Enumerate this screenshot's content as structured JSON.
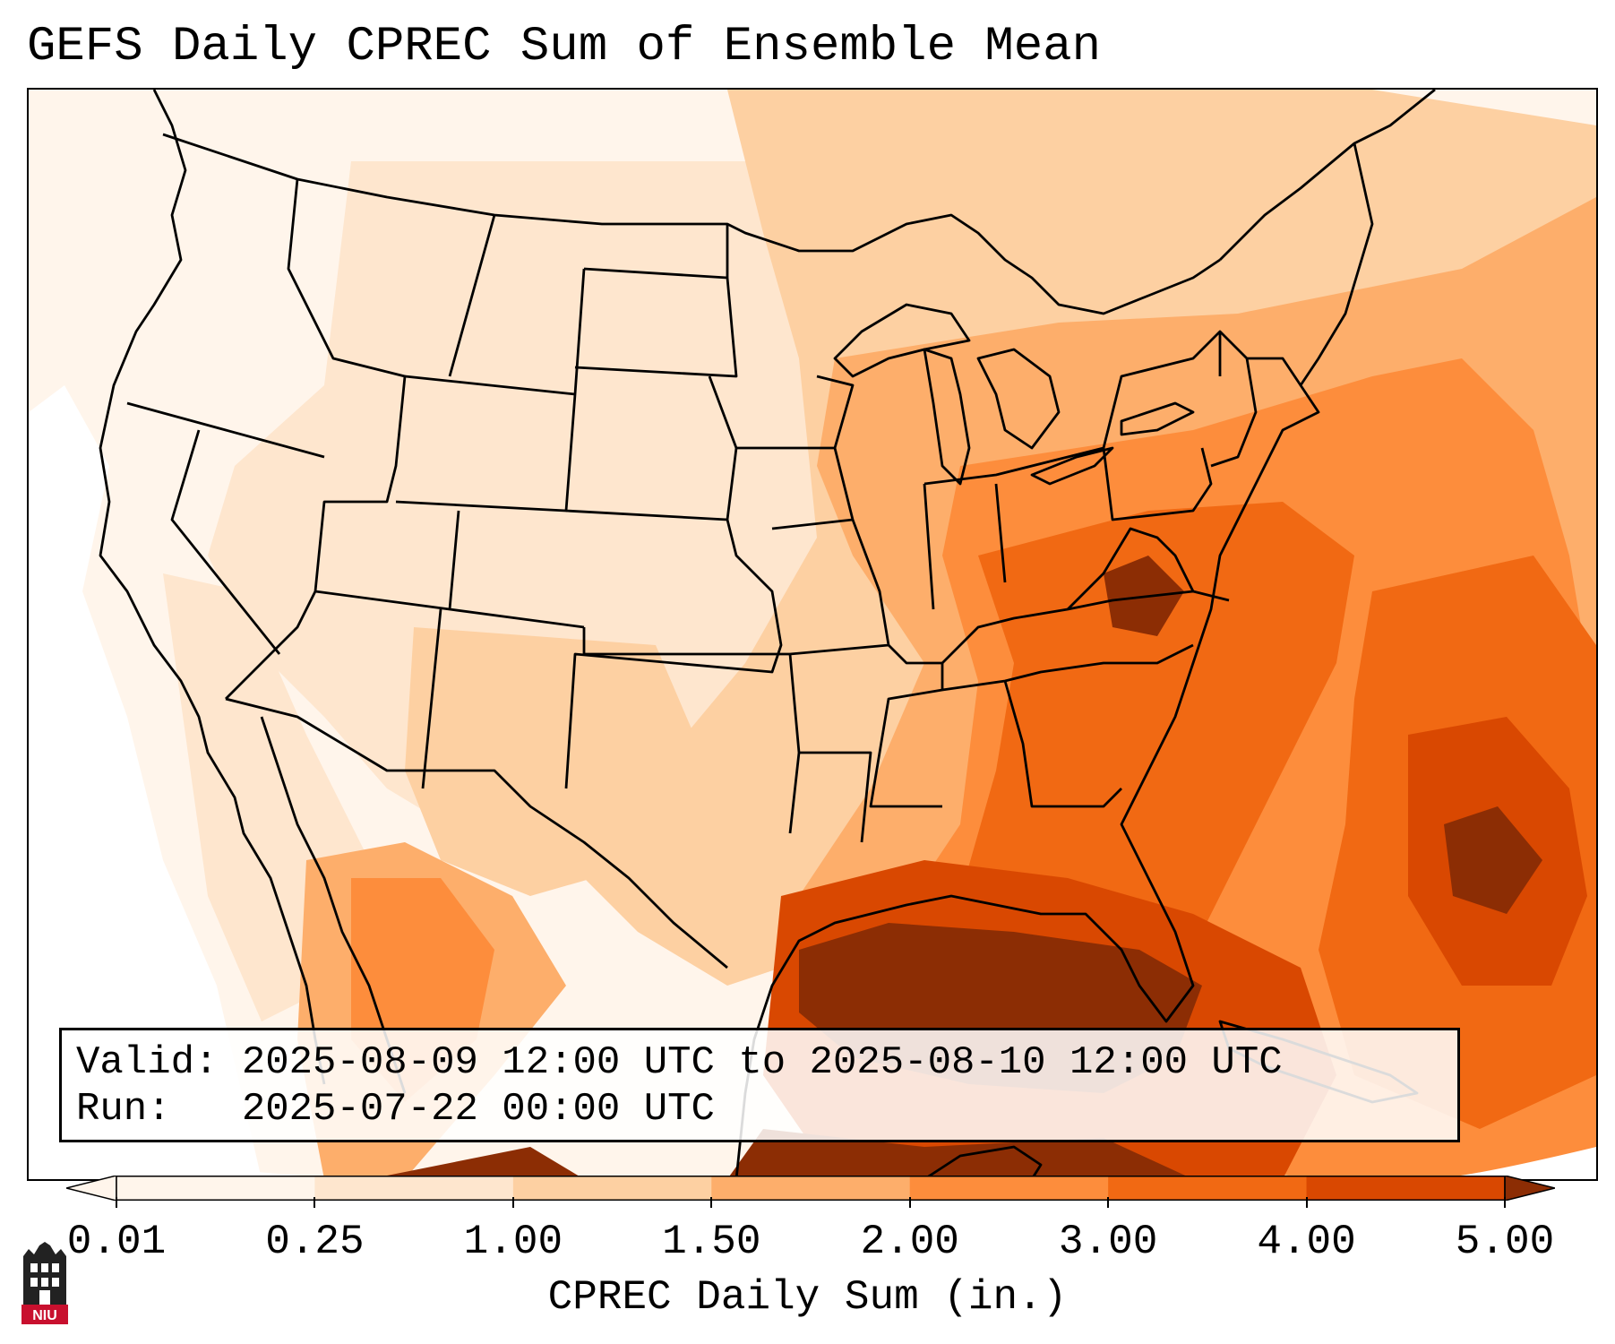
{
  "title": "GEFS Daily CPREC Sum of Ensemble Mean",
  "info": {
    "valid_label": "Valid:",
    "valid_value": "2025-08-09 12:00 UTC to 2025-08-10 12:00 UTC",
    "run_label": "Run:",
    "run_value": "2025-07-22 00:00 UTC"
  },
  "colorbar": {
    "label": "CPREC Daily Sum (in.)",
    "ticks": [
      "0.01",
      "0.25",
      "1.00",
      "1.50",
      "2.00",
      "3.00",
      "4.00",
      "5.00"
    ],
    "colors": [
      "#fff5eb",
      "#fee6ce",
      "#fdd0a2",
      "#fdae6b",
      "#fd8d3c",
      "#f16913",
      "#d94801",
      "#8c2d04"
    ],
    "extend": "both"
  },
  "map": {
    "region": "Contiguous United States, Mexico, Gulf of Mexico",
    "colors": {
      "none": "#ffffff",
      "trace": "#fff5eb",
      "light": "#fee6ce",
      "moderate": "#fdd0a2",
      "heavy": "#fdae6b",
      "very_heavy": "#fd8d3c",
      "extreme": "#f16913",
      "max": "#d94801",
      "over": "#8c2d04"
    }
  },
  "logo": {
    "text": "NIU",
    "icon": "niu-tower-logo-icon"
  }
}
